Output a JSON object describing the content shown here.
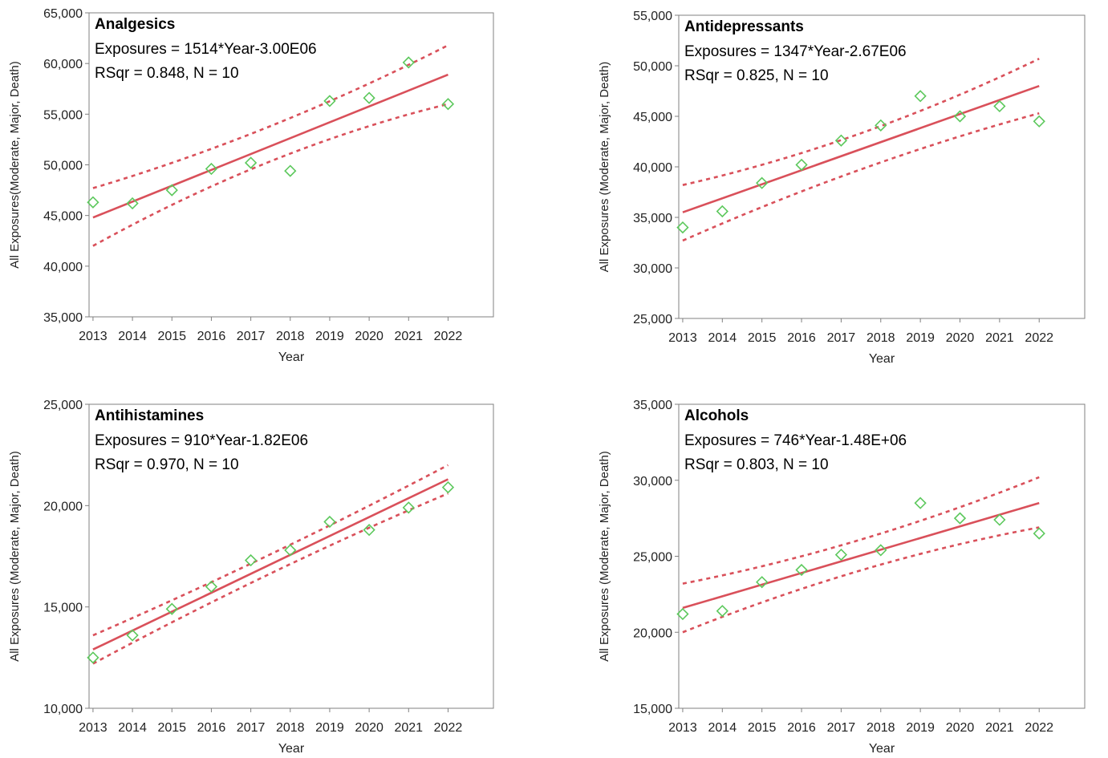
{
  "chart_data": [
    {
      "type": "scatter",
      "title": "Analgesics",
      "equation": "Exposures = 1514*Year-3.00E06",
      "stats": "RSqr = 0.848, N = 10",
      "xlabel": "Year",
      "ylabel": "All Exposures(Moderate, Major, Death)",
      "x": [
        2013,
        2014,
        2015,
        2016,
        2017,
        2018,
        2019,
        2020,
        2021,
        2022
      ],
      "y": [
        46300,
        46200,
        47500,
        49600,
        50200,
        49400,
        56300,
        56600,
        60100,
        56000
      ],
      "xlim": [
        2012.9,
        2023.15
      ],
      "ylim": [
        35000,
        65000
      ],
      "yticks": [
        35000,
        40000,
        45000,
        50000,
        55000,
        60000,
        65000
      ],
      "ytick_labels": [
        "35,000",
        "40,000",
        "45,000",
        "50,000",
        "55,000",
        "60,000",
        "65,000"
      ],
      "fit": {
        "y_start": 44800,
        "y_end": 58900
      },
      "ci_upper": [
        [
          2013,
          47700
        ],
        [
          2017.5,
          52900
        ],
        [
          2022,
          61800
        ]
      ],
      "ci_lower": [
        [
          2013,
          42000
        ],
        [
          2017.5,
          51700
        ],
        [
          2022,
          56000
        ]
      ],
      "grid": false
    },
    {
      "type": "scatter",
      "title": "Antidepressants",
      "equation": "Exposures = 1347*Year-2.67E06",
      "stats": "RSqr = 0.825, N = 10",
      "xlabel": "Year",
      "ylabel": "All Exposures (Moderate, Major, Death)",
      "x": [
        2013,
        2014,
        2015,
        2016,
        2017,
        2018,
        2019,
        2020,
        2021,
        2022
      ],
      "y": [
        34000,
        35600,
        38400,
        40200,
        42600,
        44100,
        47000,
        45000,
        46000,
        44500
      ],
      "xlim": [
        2012.9,
        2023.15
      ],
      "ylim": [
        25000,
        55000
      ],
      "yticks": [
        25000,
        30000,
        35000,
        40000,
        45000,
        50000,
        55000
      ],
      "ytick_labels": [
        "25,000",
        "30,000",
        "35,000",
        "40,000",
        "45,000",
        "50,000",
        "55,000"
      ],
      "fit": {
        "y_start": 35500,
        "y_end": 48000
      },
      "ci_upper": [
        [
          2013,
          38200
        ],
        [
          2017.5,
          42200
        ],
        [
          2022,
          50700
        ]
      ],
      "ci_lower": [
        [
          2013,
          32700
        ],
        [
          2017.5,
          40500
        ],
        [
          2022,
          45300
        ]
      ],
      "grid": false
    },
    {
      "type": "scatter",
      "title": "Antihistamines",
      "equation": "Exposures = 910*Year-1.82E06",
      "stats": "RSqr = 0.970, N = 10",
      "xlabel": "Year",
      "ylabel": "All Exposures (Moderate, Major, Death)",
      "x": [
        2013,
        2014,
        2015,
        2016,
        2017,
        2018,
        2019,
        2020,
        2021,
        2022
      ],
      "y": [
        12500,
        13600,
        14900,
        16000,
        17300,
        17800,
        19200,
        18800,
        19900,
        20900
      ],
      "xlim": [
        2012.9,
        2023.15
      ],
      "ylim": [
        10000,
        25000
      ],
      "yticks": [
        10000,
        15000,
        20000,
        25000
      ],
      "ytick_labels": [
        "10,000",
        "15,000",
        "20,000",
        "25,000"
      ],
      "fit": {
        "y_start": 12900,
        "y_end": 21300
      },
      "ci_upper": [
        [
          2013,
          13600
        ],
        [
          2017.5,
          17400
        ],
        [
          2022,
          22000
        ]
      ],
      "ci_lower": [
        [
          2013,
          12200
        ],
        [
          2017.5,
          16900
        ],
        [
          2022,
          20600
        ]
      ],
      "grid": false
    },
    {
      "type": "scatter",
      "title": "Alcohols",
      "equation": "Exposures = 746*Year-1.48E+06",
      "stats": "RSqr = 0.803, N = 10",
      "xlabel": "Year",
      "ylabel": "All Exposures (Moderate, Major, Death)",
      "x": [
        2013,
        2014,
        2015,
        2016,
        2017,
        2018,
        2019,
        2020,
        2021,
        2022
      ],
      "y": [
        21200,
        21400,
        23300,
        24100,
        25100,
        25400,
        28500,
        27500,
        27400,
        26500
      ],
      "xlim": [
        2012.9,
        2023.15
      ],
      "ylim": [
        15000,
        35000
      ],
      "yticks": [
        15000,
        20000,
        25000,
        30000,
        35000
      ],
      "ytick_labels": [
        "15,000",
        "20,000",
        "25,000",
        "30,000",
        "35,000"
      ],
      "fit": {
        "y_start": 21600,
        "y_end": 28500
      },
      "ci_upper": [
        [
          2013,
          23200
        ],
        [
          2017.5,
          25500
        ],
        [
          2022,
          30200
        ]
      ],
      "ci_lower": [
        [
          2013,
          20000
        ],
        [
          2017.5,
          24700
        ],
        [
          2022,
          26900
        ]
      ],
      "grid": false
    }
  ],
  "colors": {
    "fit_line": "#d9505a",
    "points": "#5cc85c",
    "axis": "#808080",
    "text": "#000000"
  }
}
